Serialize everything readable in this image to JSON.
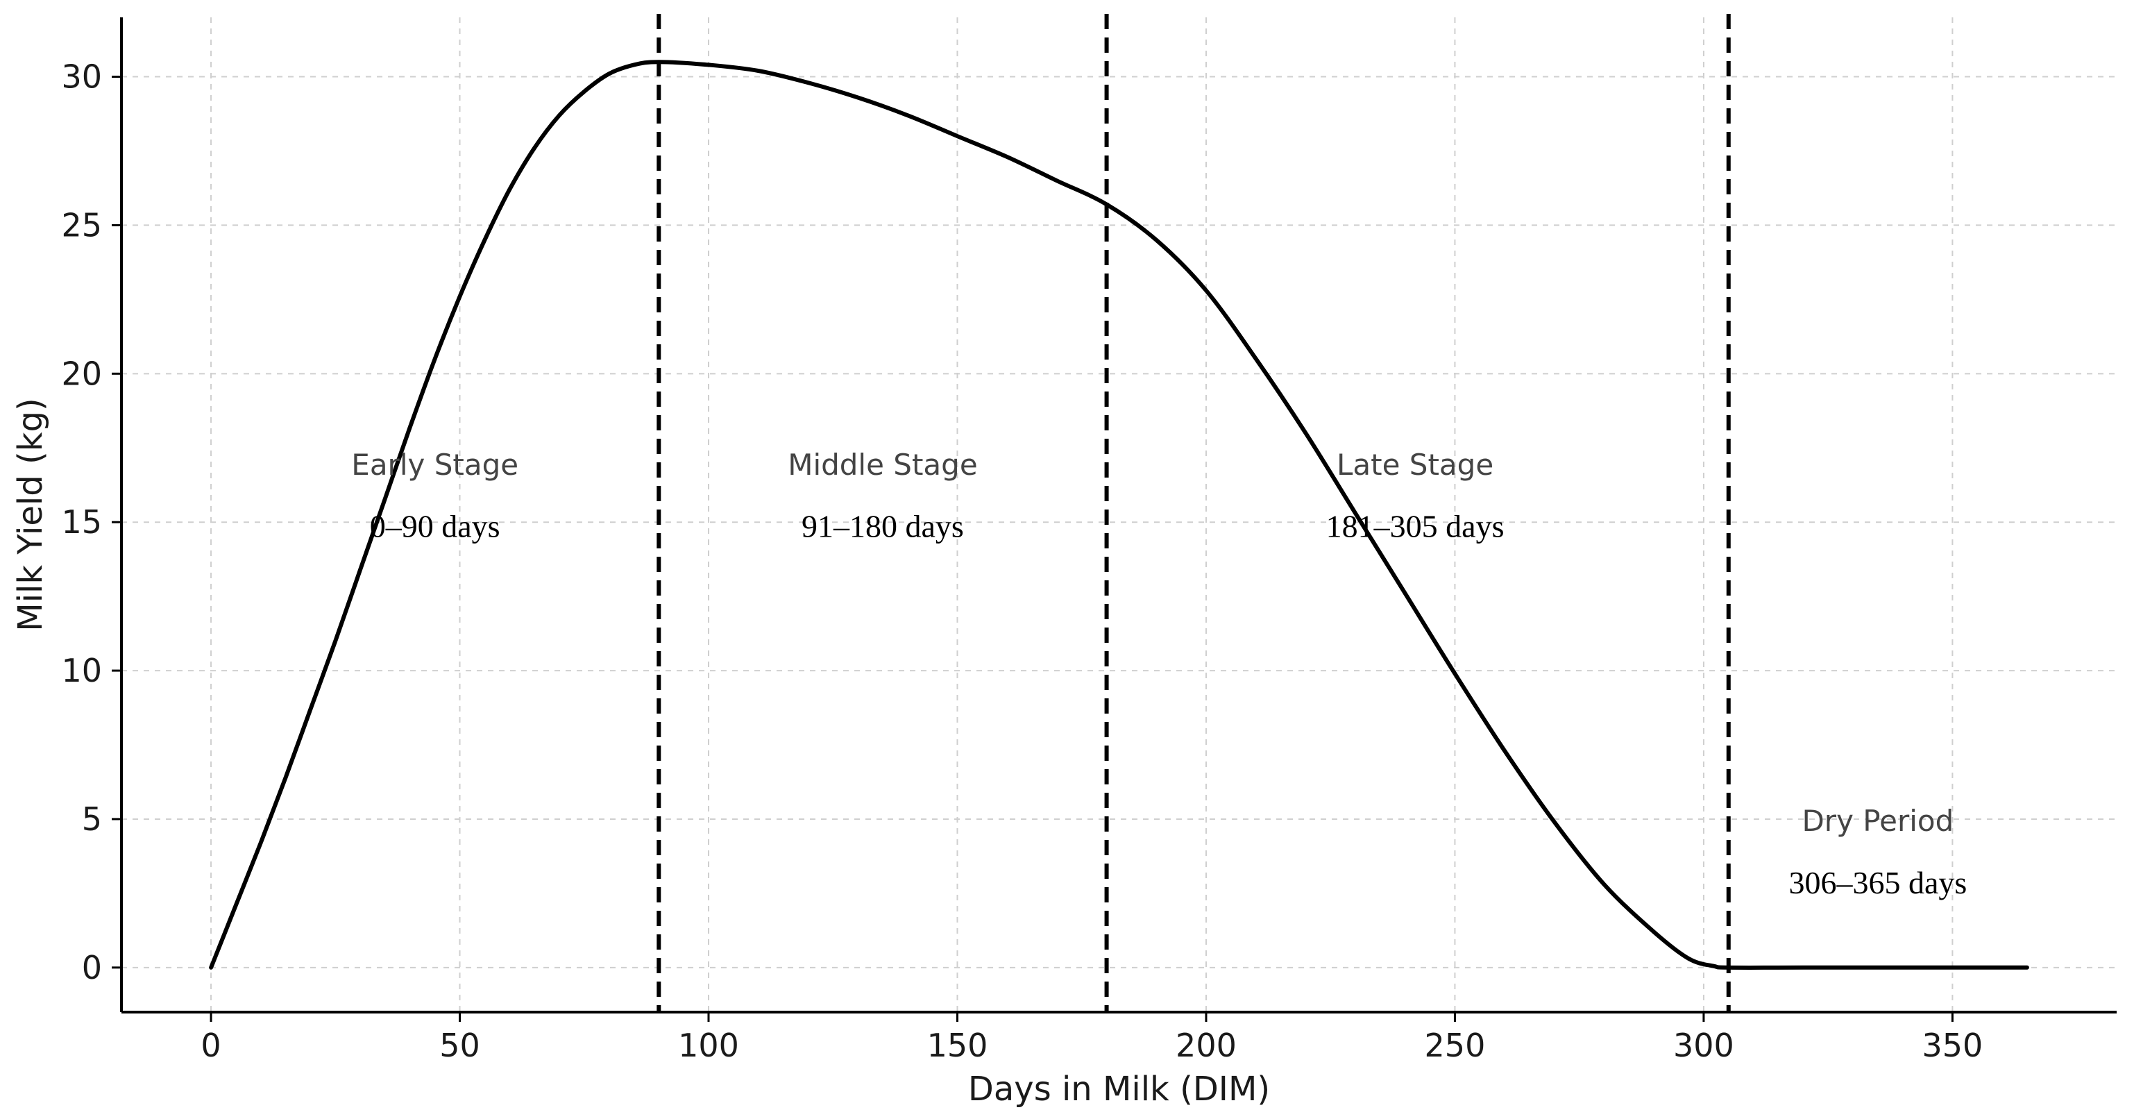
{
  "chart_data": {
    "type": "line",
    "title": "",
    "xlabel": "Days in Milk (DIM)",
    "ylabel": "Milk Yield (kg)",
    "xlim": [
      -18,
      383
    ],
    "ylim": [
      -1.5,
      32
    ],
    "x_ticks": [
      0,
      50,
      100,
      150,
      200,
      250,
      300,
      350
    ],
    "y_ticks": [
      0,
      5,
      10,
      15,
      20,
      25,
      30
    ],
    "grid": true,
    "series": [
      {
        "color": "#000000",
        "points": [
          [
            0,
            0
          ],
          [
            5,
            2.1
          ],
          [
            10,
            4.2
          ],
          [
            15,
            6.4
          ],
          [
            20,
            8.7
          ],
          [
            25,
            11.0
          ],
          [
            30,
            13.4
          ],
          [
            35,
            15.8
          ],
          [
            40,
            18.2
          ],
          [
            45,
            20.5
          ],
          [
            50,
            22.6
          ],
          [
            55,
            24.5
          ],
          [
            60,
            26.2
          ],
          [
            65,
            27.6
          ],
          [
            70,
            28.7
          ],
          [
            75,
            29.5
          ],
          [
            80,
            30.1
          ],
          [
            85,
            30.4
          ],
          [
            90,
            30.5
          ],
          [
            100,
            30.4
          ],
          [
            110,
            30.2
          ],
          [
            120,
            29.8
          ],
          [
            130,
            29.3
          ],
          [
            140,
            28.7
          ],
          [
            150,
            28.0
          ],
          [
            160,
            27.3
          ],
          [
            170,
            26.5
          ],
          [
            180,
            25.7
          ],
          [
            190,
            24.5
          ],
          [
            200,
            22.8
          ],
          [
            210,
            20.5
          ],
          [
            220,
            18.0
          ],
          [
            230,
            15.3
          ],
          [
            240,
            12.6
          ],
          [
            250,
            9.9
          ],
          [
            260,
            7.3
          ],
          [
            270,
            4.9
          ],
          [
            280,
            2.8
          ],
          [
            290,
            1.2
          ],
          [
            297,
            0.3
          ],
          [
            302,
            0.05
          ],
          [
            305,
            0
          ],
          [
            320,
            0
          ],
          [
            340,
            0
          ],
          [
            365,
            0
          ]
        ]
      }
    ],
    "boundaries": [
      90,
      180,
      305
    ],
    "stages": [
      {
        "name": "Early Stage",
        "range": "0–90 days",
        "x": 45,
        "y_name": 16.6,
        "y_range": 14.5
      },
      {
        "name": "Middle Stage",
        "range": "91–180 days",
        "x": 135,
        "y_name": 16.6,
        "y_range": 14.5
      },
      {
        "name": "Late Stage",
        "range": "181–305 days",
        "x": 242,
        "y_name": 16.6,
        "y_range": 14.5
      },
      {
        "name": "Dry Period",
        "range": "306–365 days",
        "x": 335,
        "y_name": 4.6,
        "y_range": 2.5
      }
    ]
  }
}
